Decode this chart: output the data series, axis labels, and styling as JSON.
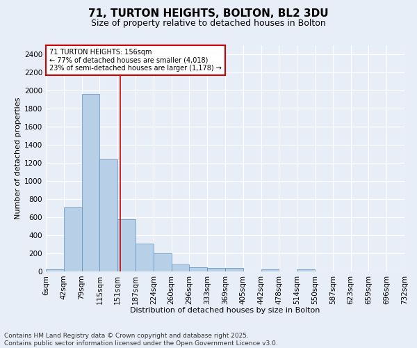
{
  "title": "71, TURTON HEIGHTS, BOLTON, BL2 3DU",
  "subtitle": "Size of property relative to detached houses in Bolton",
  "xlabel": "Distribution of detached houses by size in Bolton",
  "ylabel": "Number of detached properties",
  "bin_labels": [
    "6sqm",
    "42sqm",
    "79sqm",
    "115sqm",
    "151sqm",
    "187sqm",
    "224sqm",
    "260sqm",
    "296sqm",
    "333sqm",
    "369sqm",
    "405sqm",
    "442sqm",
    "478sqm",
    "514sqm",
    "550sqm",
    "587sqm",
    "623sqm",
    "659sqm",
    "696sqm",
    "732sqm"
  ],
  "bar_values": [
    20,
    710,
    1960,
    1240,
    575,
    305,
    200,
    80,
    45,
    35,
    35,
    0,
    25,
    0,
    20,
    0,
    0,
    0,
    0,
    0
  ],
  "bar_color": "#b8cfe8",
  "bar_edge_color": "#5b8dc0",
  "background_color": "#e8eef8",
  "grid_color": "#ffffff",
  "ylim": [
    0,
    2500
  ],
  "yticks": [
    0,
    200,
    400,
    600,
    800,
    1000,
    1200,
    1400,
    1600,
    1800,
    2000,
    2200,
    2400
  ],
  "annotation_title": "71 TURTON HEIGHTS: 156sqm",
  "annotation_line1": "← 77% of detached houses are smaller (4,018)",
  "annotation_line2": "23% of semi-detached houses are larger (1,178) →",
  "annotation_box_color": "#ffffff",
  "annotation_box_edge_color": "#cc0000",
  "footer_line1": "Contains HM Land Registry data © Crown copyright and database right 2025.",
  "footer_line2": "Contains public sector information licensed under the Open Government Licence v3.0.",
  "red_line_color": "#cc0000",
  "title_fontsize": 11,
  "subtitle_fontsize": 9,
  "axis_label_fontsize": 8,
  "tick_fontsize": 7.5,
  "annotation_fontsize": 7,
  "footer_fontsize": 6.5
}
